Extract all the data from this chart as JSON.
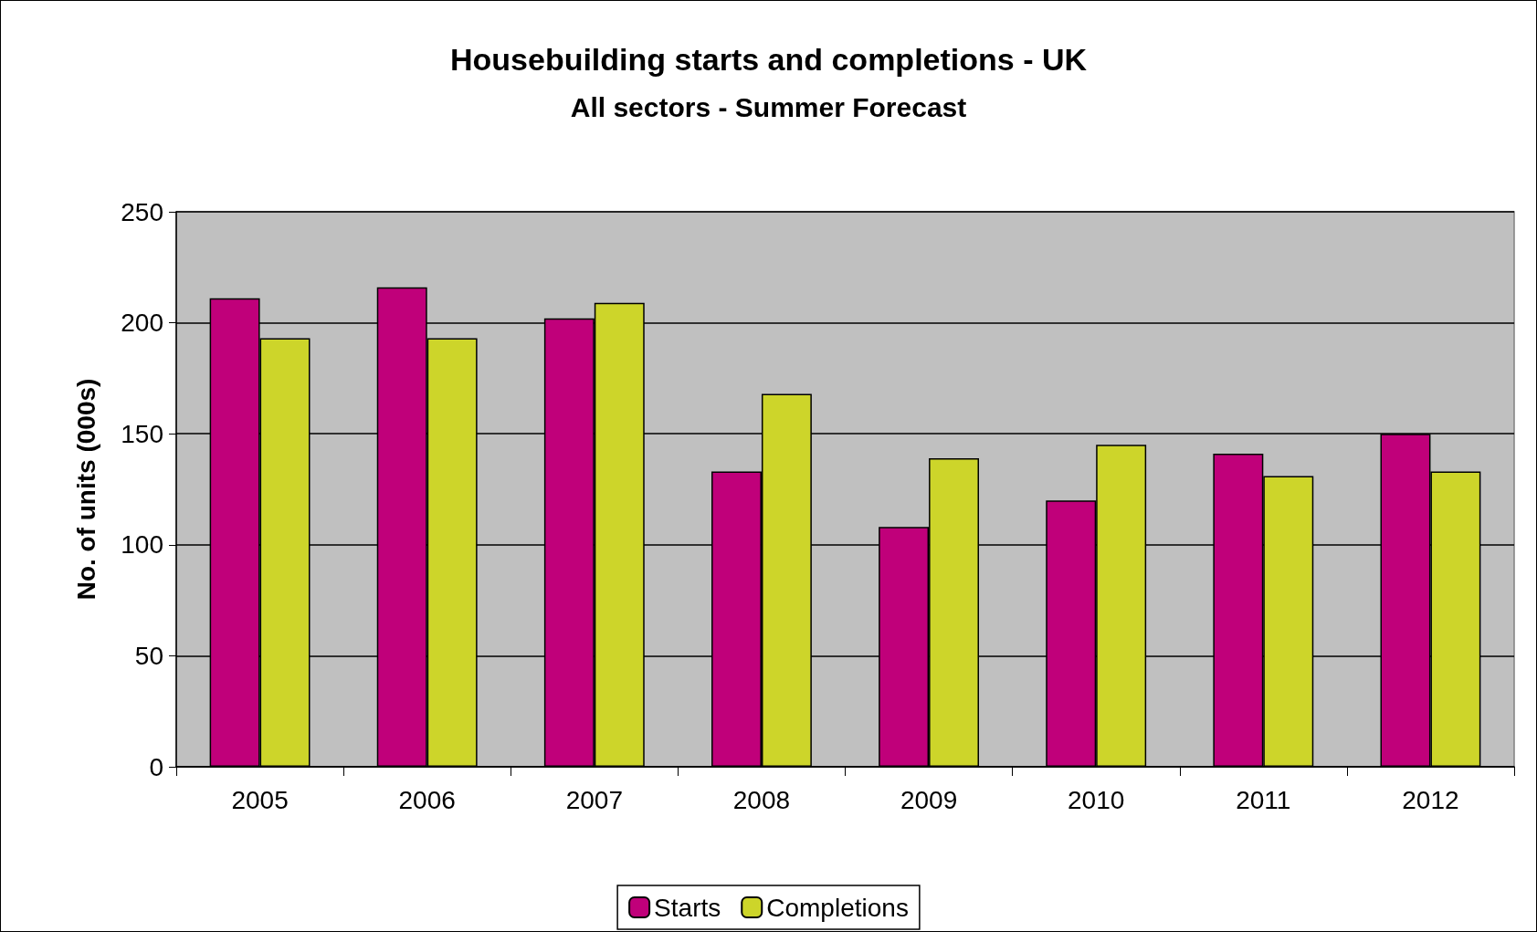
{
  "chart_data": {
    "type": "bar",
    "title": "Housebuilding starts and completions - UK",
    "subtitle": "All sectors - Summer Forecast",
    "ylabel": "No. of units (000s)",
    "categories": [
      "2005",
      "2006",
      "2007",
      "2008",
      "2009",
      "2010",
      "2011",
      "2012"
    ],
    "series": [
      {
        "name": "Starts",
        "color": "#c0007a",
        "values": [
          211,
          216,
          202,
          133,
          108,
          120,
          141,
          150
        ]
      },
      {
        "name": "Completions",
        "color": "#cdd52a",
        "values": [
          193,
          193,
          209,
          168,
          139,
          145,
          131,
          133
        ]
      }
    ],
    "ylim": [
      0,
      250
    ],
    "yticks": [
      0,
      50,
      100,
      150,
      200,
      250
    ],
    "grid": "y",
    "legend": "bottom"
  }
}
